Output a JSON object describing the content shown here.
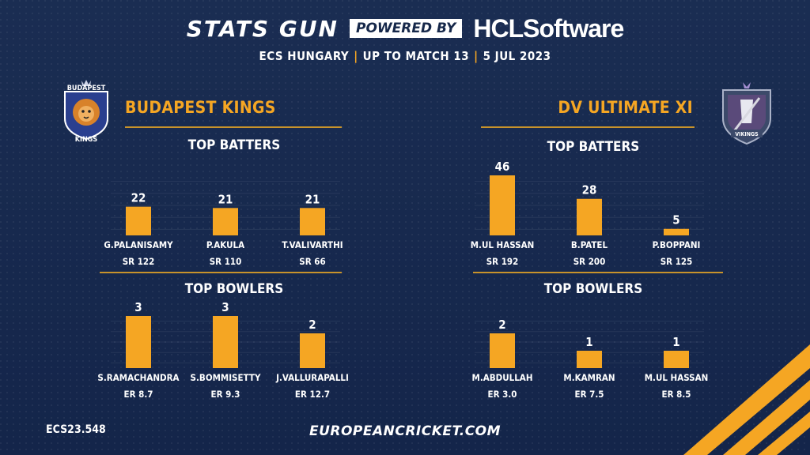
{
  "header": {
    "brand": "STATS GUN",
    "powered_by": "POWERED BY",
    "sponsor_hcl": "HCL",
    "sponsor_software": "Software",
    "subtitle_parts": [
      "ECS HUNGARY",
      "UP TO MATCH 13",
      "5 JUL 2023"
    ],
    "separator": "|"
  },
  "teams": {
    "left": {
      "name": "BUDAPEST KINGS",
      "logo_text_top": "BUDAPEST",
      "logo_text_bottom": "KINGS"
    },
    "right": {
      "name": "DV ULTIMATE XI",
      "logo_text": "VIKINGS"
    }
  },
  "section_titles": {
    "batters": "TOP BATTERS",
    "bowlers": "TOP BOWLERS"
  },
  "colors": {
    "accent": "#f5a623",
    "background": "#16284a",
    "bar": "#f5a623",
    "rule": "#c8932b"
  },
  "chart_data": [
    {
      "type": "bar",
      "title": "TOP BATTERS",
      "team": "BUDAPEST KINGS",
      "categories": [
        "G.PALANISAMY",
        "P.AKULA",
        "T.VALIVARTHI"
      ],
      "values": [
        22,
        21,
        21
      ],
      "sublabels": [
        "SR 122",
        "SR 110",
        "SR 66"
      ],
      "ylim": [
        0,
        46
      ]
    },
    {
      "type": "bar",
      "title": "TOP BOWLERS",
      "team": "BUDAPEST KINGS",
      "categories": [
        "S.RAMACHANDRA",
        "S.BOMMISETTY",
        "J.VALLURAPALLI"
      ],
      "values": [
        3,
        3,
        2
      ],
      "sublabels": [
        "ER 8.7",
        "ER 9.3",
        "ER 12.7"
      ],
      "ylim": [
        0,
        3
      ]
    },
    {
      "type": "bar",
      "title": "TOP BATTERS",
      "team": "DV ULTIMATE XI",
      "categories": [
        "M.UL HASSAN",
        "B.PATEL",
        "P.BOPPANI"
      ],
      "values": [
        46,
        28,
        5
      ],
      "sublabels": [
        "SR 192",
        "SR 200",
        "SR 125"
      ],
      "ylim": [
        0,
        46
      ]
    },
    {
      "type": "bar",
      "title": "TOP BOWLERS",
      "team": "DV ULTIMATE XI",
      "categories": [
        "M.ABDULLAH",
        "M.KAMRAN",
        "M.UL HASSAN"
      ],
      "values": [
        2,
        1,
        1
      ],
      "sublabels": [
        "ER 3.0",
        "ER 7.5",
        "ER 8.5"
      ],
      "ylim": [
        0,
        3
      ]
    }
  ],
  "footer": {
    "code": "ECS23.548",
    "url": "EUROPEANCRICKET.COM"
  }
}
